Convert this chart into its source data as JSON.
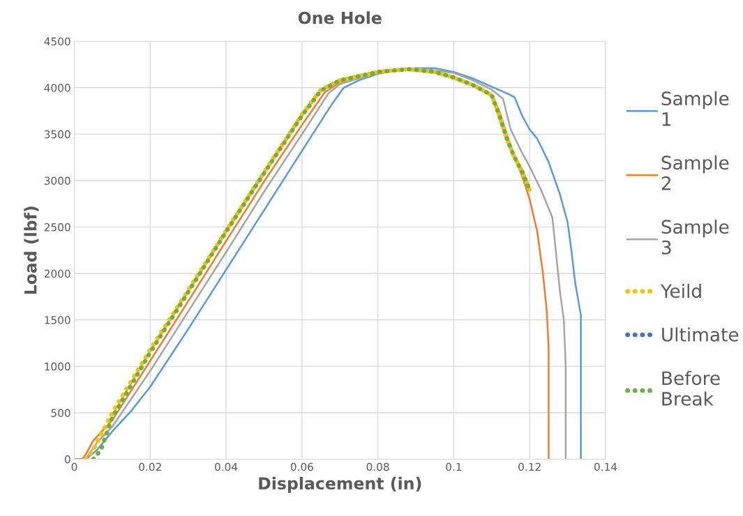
{
  "chart_data": {
    "type": "line",
    "title": "One Hole",
    "xlabel": "Displacement (in)",
    "ylabel": "Load (lbf)",
    "xlim": [
      0,
      0.14
    ],
    "xticks": [
      {
        "value": 0,
        "label": "0"
      },
      0.02,
      0.04,
      0.06,
      0.08,
      {
        "value": 0.1,
        "label": "0.1"
      },
      0.12,
      0.14
    ],
    "ylim": [
      0,
      4500
    ],
    "yticks": [
      0,
      500,
      1000,
      1500,
      2000,
      2500,
      3000,
      3500,
      4000,
      4500
    ],
    "grid": true,
    "legend": "right",
    "series": [
      {
        "name": "Sample 1",
        "color": "#5b9bd5",
        "line_style": "solid",
        "x": [
          0,
          0.003,
          0.006,
          0.01,
          0.015,
          0.02,
          0.03,
          0.04,
          0.05,
          0.06,
          0.068,
          0.071,
          0.075,
          0.08,
          0.085,
          0.09,
          0.095,
          0.1,
          0.105,
          0.11,
          0.114,
          0.116,
          0.118,
          0.12,
          0.122,
          0.125,
          0.128,
          0.13,
          0.131,
          0.132,
          0.1335,
          0.1335
        ],
        "values": [
          0,
          0,
          100,
          300,
          520,
          780,
          1400,
          2040,
          2680,
          3320,
          3830,
          4000,
          4080,
          4150,
          4190,
          4210,
          4210,
          4170,
          4100,
          4010,
          3940,
          3900,
          3700,
          3550,
          3450,
          3200,
          2850,
          2550,
          2250,
          1900,
          1550,
          0
        ]
      },
      {
        "name": "Sample 2",
        "color": "#ed7d31",
        "line_style": "solid",
        "x": [
          0,
          0.002,
          0.003,
          0.005,
          0.01,
          0.02,
          0.03,
          0.04,
          0.05,
          0.06,
          0.066,
          0.07,
          0.075,
          0.08,
          0.088,
          0.095,
          0.1,
          0.105,
          0.11,
          0.112,
          0.114,
          0.116,
          0.118,
          0.12,
          0.122,
          0.1235,
          0.1245,
          0.125,
          0.125
        ],
        "values": [
          0,
          0,
          50,
          200,
          420,
          1060,
          1700,
          2350,
          2990,
          3600,
          3950,
          4060,
          4120,
          4170,
          4200,
          4170,
          4110,
          4030,
          3920,
          3750,
          3500,
          3250,
          3050,
          2800,
          2450,
          2000,
          1600,
          1200,
          0
        ]
      },
      {
        "name": "Sample 3",
        "color": "#a5a5a5",
        "line_style": "solid",
        "x": [
          0,
          0.003,
          0.006,
          0.01,
          0.02,
          0.03,
          0.04,
          0.05,
          0.06,
          0.067,
          0.07,
          0.08,
          0.09,
          0.1,
          0.105,
          0.11,
          0.113,
          0.115,
          0.118,
          0.12,
          0.123,
          0.126,
          0.127,
          0.128,
          0.129,
          0.1295,
          0.1295
        ],
        "values": [
          0,
          0,
          180,
          350,
          950,
          1590,
          2230,
          2880,
          3500,
          3940,
          4040,
          4160,
          4210,
          4160,
          4080,
          3980,
          3880,
          3550,
          3300,
          3150,
          2900,
          2600,
          2200,
          1800,
          1500,
          1000,
          0
        ]
      },
      {
        "name": "Yeild",
        "color": "#ffc000",
        "line_style": "dotted",
        "x": [
          0.003,
          0.005,
          0.01,
          0.02,
          0.03,
          0.04,
          0.05,
          0.06,
          0.065,
          0.07,
          0.08,
          0.088,
          0.095,
          0.1,
          0.105,
          0.11,
          0.112,
          0.114,
          0.116,
          0.118,
          0.12
        ],
        "values": [
          0,
          100,
          500,
          1180,
          1820,
          2460,
          3090,
          3710,
          3980,
          4080,
          4170,
          4200,
          4170,
          4110,
          4030,
          3920,
          3700,
          3450,
          3250,
          3100,
          2900
        ]
      },
      {
        "name": "Ultimate",
        "color": "#4472c4",
        "line_style": "dotted"
      },
      {
        "name": "Before Break",
        "color": "#70ad47",
        "line_style": "dotted",
        "x": [
          0.005,
          0.007,
          0.01,
          0.02,
          0.03,
          0.04,
          0.05,
          0.06,
          0.065,
          0.07,
          0.08,
          0.088,
          0.095,
          0.1,
          0.105,
          0.11,
          0.112,
          0.114,
          0.116,
          0.118,
          0.12
        ],
        "values": [
          0,
          100,
          450,
          1150,
          1800,
          2450,
          3080,
          3700,
          3970,
          4080,
          4170,
          4200,
          4170,
          4110,
          4030,
          3920,
          3700,
          3450,
          3250,
          3100,
          2900
        ]
      }
    ]
  }
}
